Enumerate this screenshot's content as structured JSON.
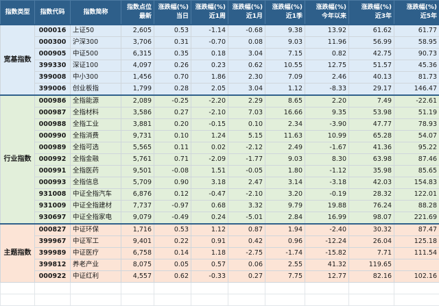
{
  "header": {
    "category": "指数类型",
    "code": "指数代码",
    "name": "指数简称",
    "point_1": "指数点位",
    "point_2": "最新",
    "change_top": "涨跌幅(%)",
    "day": "当日",
    "week": "近1周",
    "month": "近1月",
    "quarter": "近1季",
    "ytd": "今年以来",
    "y3": "近3年",
    "y5": "近5年"
  },
  "groups": [
    {
      "name": "宽基指数",
      "rows": [
        {
          "code": "000016",
          "name": "上证50",
          "point": "2,605",
          "d": "0.53",
          "w": "-1.14",
          "m": "-0.68",
          "q": "9.38",
          "ytd": "13.92",
          "y3": "61.62",
          "y5": "61.77"
        },
        {
          "code": "000300",
          "name": "沪深300",
          "point": "3,706",
          "d": "0.31",
          "w": "-0.70",
          "m": "0.08",
          "q": "9.03",
          "ytd": "11.96",
          "y3": "56.99",
          "y5": "58.95"
        },
        {
          "code": "000905",
          "name": "中证500",
          "point": "6,315",
          "d": "0.35",
          "w": "0.18",
          "m": "3.04",
          "q": "7.15",
          "ytd": "0.82",
          "y3": "42.75",
          "y5": "90.73"
        },
        {
          "code": "399330",
          "name": "深证100",
          "point": "4,097",
          "d": "0.26",
          "w": "0.23",
          "m": "0.62",
          "q": "10.55",
          "ytd": "12.75",
          "y3": "51.57",
          "y5": "45.36"
        },
        {
          "code": "399008",
          "name": "中小300",
          "point": "1,456",
          "d": "0.70",
          "w": "1.86",
          "m": "2.30",
          "q": "7.09",
          "ytd": "2.46",
          "y3": "40.13",
          "y5": "81.73"
        },
        {
          "code": "399006",
          "name": "创业板指",
          "point": "1,799",
          "d": "0.28",
          "w": "2.05",
          "m": "3.04",
          "q": "1.12",
          "ytd": "-8.33",
          "y3": "29.17",
          "y5": "146.47"
        }
      ]
    },
    {
      "name": "行业指数",
      "rows": [
        {
          "code": "000986",
          "name": "全指能源",
          "point": "2,089",
          "d": "-0.25",
          "w": "-2.20",
          "m": "2.29",
          "q": "8.65",
          "ytd": "2.20",
          "y3": "7.49",
          "y5": "-22.61"
        },
        {
          "code": "000987",
          "name": "全指材料",
          "point": "3,586",
          "d": "0.27",
          "w": "-2.10",
          "m": "7.03",
          "q": "16.66",
          "ytd": "9.35",
          "y3": "53.98",
          "y5": "51.19"
        },
        {
          "code": "000988",
          "name": "全指工业",
          "point": "3,881",
          "d": "0.20",
          "w": "-0.15",
          "m": "0.10",
          "q": "2.34",
          "ytd": "-3.90",
          "y3": "47.77",
          "y5": "78.93"
        },
        {
          "code": "000990",
          "name": "全指消费",
          "point": "9,731",
          "d": "0.10",
          "w": "1.24",
          "m": "5.15",
          "q": "11.63",
          "ytd": "10.99",
          "y3": "65.28",
          "y5": "54.07"
        },
        {
          "code": "000989",
          "name": "全指可选",
          "point": "5,565",
          "d": "0.11",
          "w": "0.02",
          "m": "-2.12",
          "q": "2.49",
          "ytd": "-1.67",
          "y3": "41.36",
          "y5": "95.22"
        },
        {
          "code": "000992",
          "name": "全指金融",
          "point": "5,761",
          "d": "0.71",
          "w": "-2.09",
          "m": "-1.77",
          "q": "9.03",
          "ytd": "8.30",
          "y3": "63.98",
          "y5": "87.46"
        },
        {
          "code": "000991",
          "name": "全指医药",
          "point": "9,501",
          "d": "-0.08",
          "w": "1.51",
          "m": "-0.05",
          "q": "1.80",
          "ytd": "-1.12",
          "y3": "35.98",
          "y5": "85.65"
        },
        {
          "code": "000993",
          "name": "全指信息",
          "point": "5,709",
          "d": "0.90",
          "w": "3.18",
          "m": "2.47",
          "q": "3.14",
          "ytd": "-3.18",
          "y3": "42.03",
          "y5": "154.83"
        },
        {
          "code": "931008",
          "name": "中证全指汽车",
          "point": "6,876",
          "d": "0.12",
          "w": "-0.47",
          "m": "-2.10",
          "q": "3.20",
          "ytd": "-0.19",
          "y3": "28.32",
          "y5": "122.01"
        },
        {
          "code": "931009",
          "name": "中证全指建材",
          "point": "7,737",
          "d": "-0.97",
          "w": "0.68",
          "m": "3.32",
          "q": "9.79",
          "ytd": "19.88",
          "y3": "76.24",
          "y5": "88.28"
        },
        {
          "code": "930697",
          "name": "中证全指家电",
          "point": "9,079",
          "d": "-0.49",
          "w": "0.24",
          "m": "-5.01",
          "q": "2.84",
          "ytd": "16.99",
          "y3": "98.07",
          "y5": "221.69"
        }
      ]
    },
    {
      "name": "主题指数",
      "rows": [
        {
          "code": "000827",
          "name": "中证环保",
          "point": "1,716",
          "d": "0.53",
          "w": "1.12",
          "m": "0.87",
          "q": "1.94",
          "ytd": "-2.40",
          "y3": "30.32",
          "y5": "87.47"
        },
        {
          "code": "399967",
          "name": "中证军工",
          "point": "9,401",
          "d": "0.22",
          "w": "0.91",
          "m": "0.42",
          "q": "0.96",
          "ytd": "-12.24",
          "y3": "26.04",
          "y5": "125.18"
        },
        {
          "code": "399989",
          "name": "中证医疗",
          "point": "6,758",
          "d": "0.14",
          "w": "1.18",
          "m": "-2.75",
          "q": "-1.74",
          "ytd": "-15.82",
          "y3": "7.71",
          "y5": "111.54"
        },
        {
          "code": "399812",
          "name": "养老产业",
          "point": "8,075",
          "d": "0.05",
          "w": "0.57",
          "m": "0.06",
          "q": "2.55",
          "ytd": "41.32",
          "y3": "119.65",
          "y5": ""
        },
        {
          "code": "000922",
          "name": "中证红利",
          "point": "4,557",
          "d": "0.62",
          "w": "-0.33",
          "m": "0.27",
          "q": "7.75",
          "ytd": "12.77",
          "y3": "82.16",
          "y5": "102.16"
        }
      ]
    }
  ]
}
